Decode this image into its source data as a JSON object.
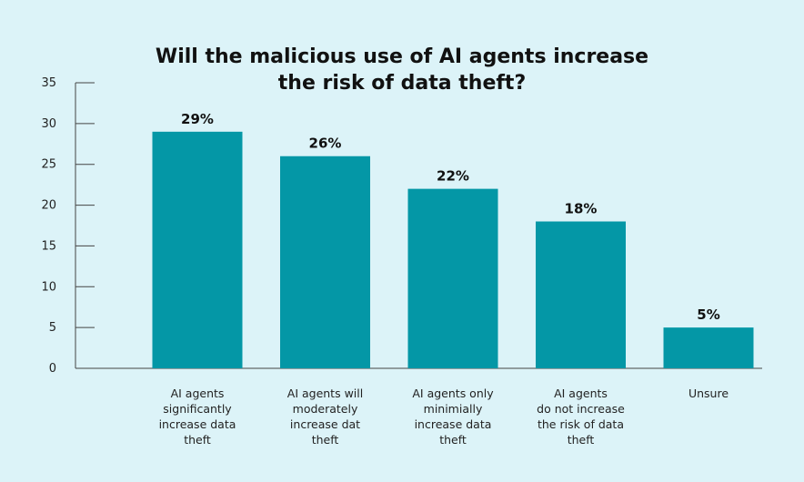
{
  "chart_data": {
    "type": "bar",
    "title_lines": [
      "Will the malicious use of AI agents increase",
      "the risk of data theft?"
    ],
    "categories": [
      [
        "AI agents",
        "significantly",
        "increase data",
        "theft"
      ],
      [
        "AI agents will",
        "moderately",
        "increase dat",
        "theft"
      ],
      [
        "AI agents only",
        "minimially",
        "increase data",
        "theft"
      ],
      [
        "AI agents",
        "do not increase",
        "the risk of data",
        "theft"
      ],
      [
        "Unsure"
      ]
    ],
    "values": [
      29,
      26,
      22,
      18,
      5
    ],
    "data_labels": [
      "29%",
      "26%",
      "22%",
      "18%",
      "5%"
    ],
    "y_ticks": [
      0,
      5,
      10,
      15,
      20,
      25,
      30,
      35
    ],
    "ylim": [
      0,
      35
    ],
    "bar_color": "#0497a6",
    "axis_color": "#444444",
    "background": "#dcf3f8",
    "grid": false
  }
}
